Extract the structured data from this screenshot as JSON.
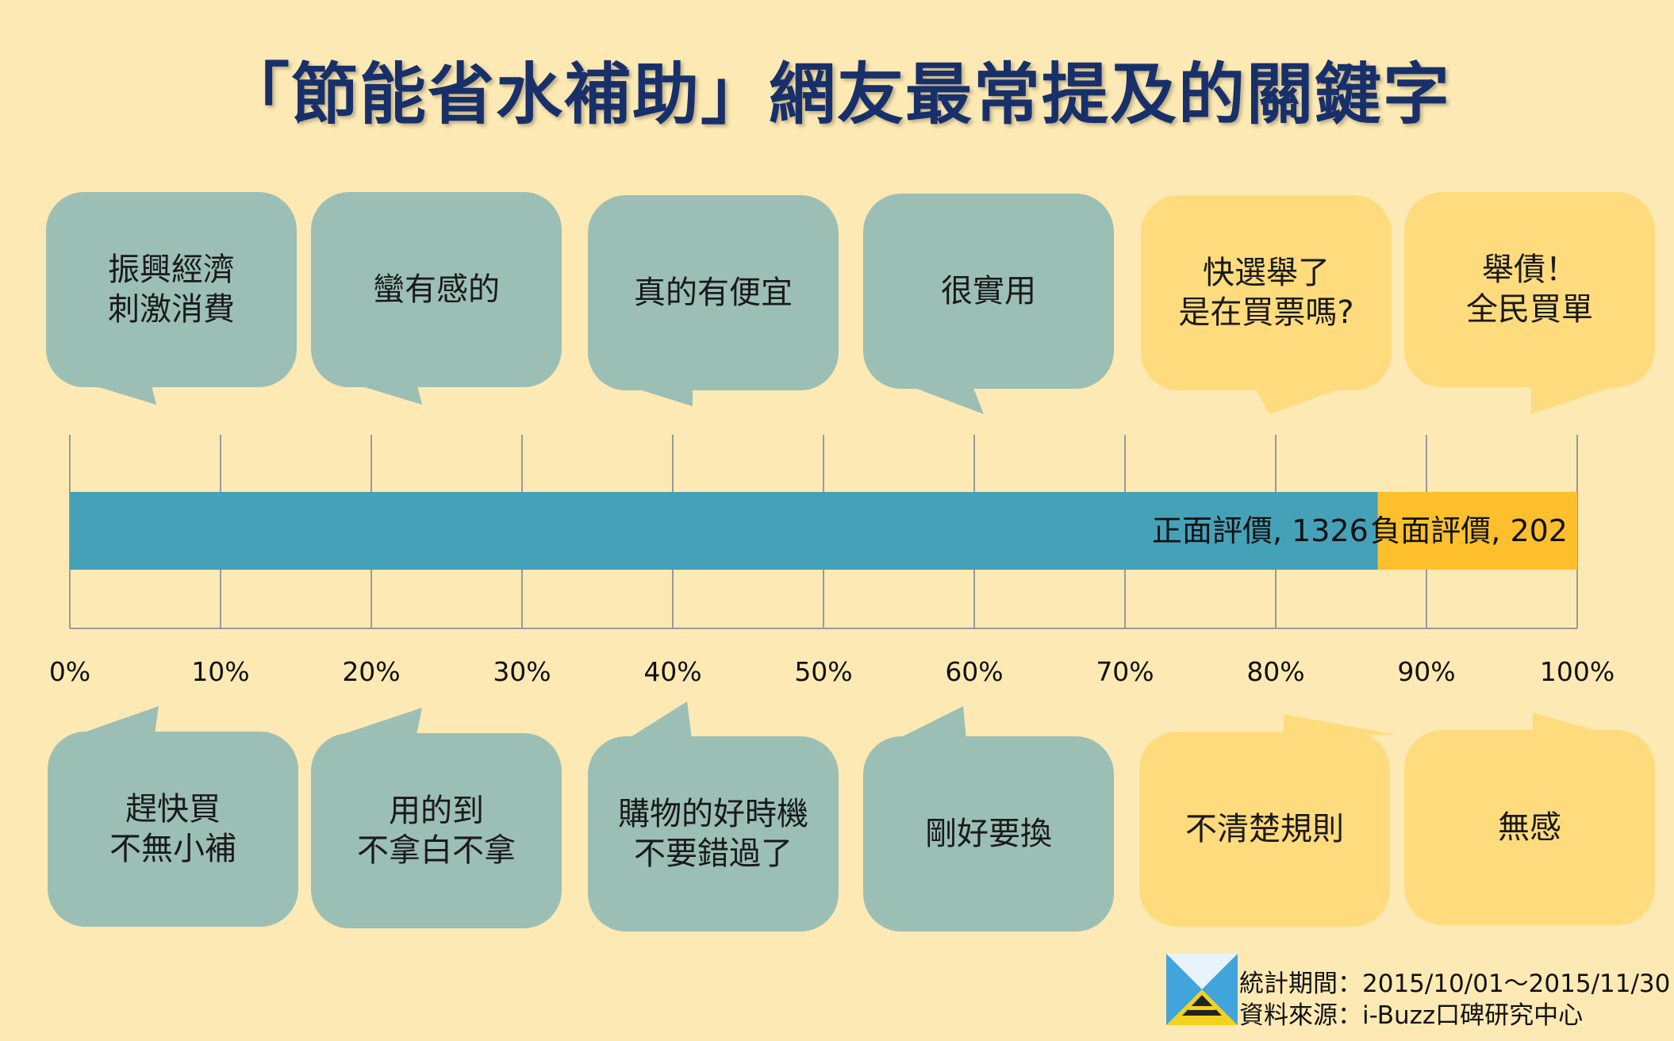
{
  "title": "「節能省水補助」網友最常提及的關鍵字",
  "colors": {
    "background": "#fde9b4",
    "positive_bar": "#45a1b8",
    "negative_bar": "#fdc02c",
    "positive_bubble": "#9bbfb5",
    "negative_bubble": "#fedb7d",
    "title": "#18306a"
  },
  "bubbles_top": [
    {
      "text": "振興經濟\n刺激消費",
      "sentiment": "positive"
    },
    {
      "text": "蠻有感的",
      "sentiment": "positive"
    },
    {
      "text": "真的有便宜",
      "sentiment": "positive"
    },
    {
      "text": "很實用",
      "sentiment": "positive"
    },
    {
      "text": "快選舉了\n是在買票嗎?",
      "sentiment": "negative"
    },
    {
      "text": "舉債！\n全民買單",
      "sentiment": "negative"
    }
  ],
  "bubbles_bottom": [
    {
      "text": "趕快買\n不無小補",
      "sentiment": "positive"
    },
    {
      "text": "用的到\n不拿白不拿",
      "sentiment": "positive"
    },
    {
      "text": "購物的好時機\n不要錯過了",
      "sentiment": "positive"
    },
    {
      "text": "剛好要換",
      "sentiment": "positive"
    },
    {
      "text": "不清楚規則",
      "sentiment": "negative"
    },
    {
      "text": "無感",
      "sentiment": "negative"
    }
  ],
  "chart_data": {
    "type": "bar",
    "orientation": "horizontal",
    "stacked": "percent",
    "series": [
      {
        "name": "正面評價",
        "values": [
          1326
        ]
      },
      {
        "name": "負面評價",
        "values": [
          202
        ]
      }
    ],
    "data_labels": [
      "正面評價, 1326",
      "負面評價, 202"
    ],
    "xlim": [
      0,
      100
    ],
    "x_ticks": [
      "0%",
      "10%",
      "20%",
      "30%",
      "40%",
      "50%",
      "60%",
      "70%",
      "80%",
      "90%",
      "100%"
    ],
    "grid": true
  },
  "footer": {
    "period": "統計期間：2015/10/01～2015/11/30",
    "source": "資料來源：i-Buzz口碑研究中心",
    "logo_icon": "i-buzz-logo-icon"
  }
}
